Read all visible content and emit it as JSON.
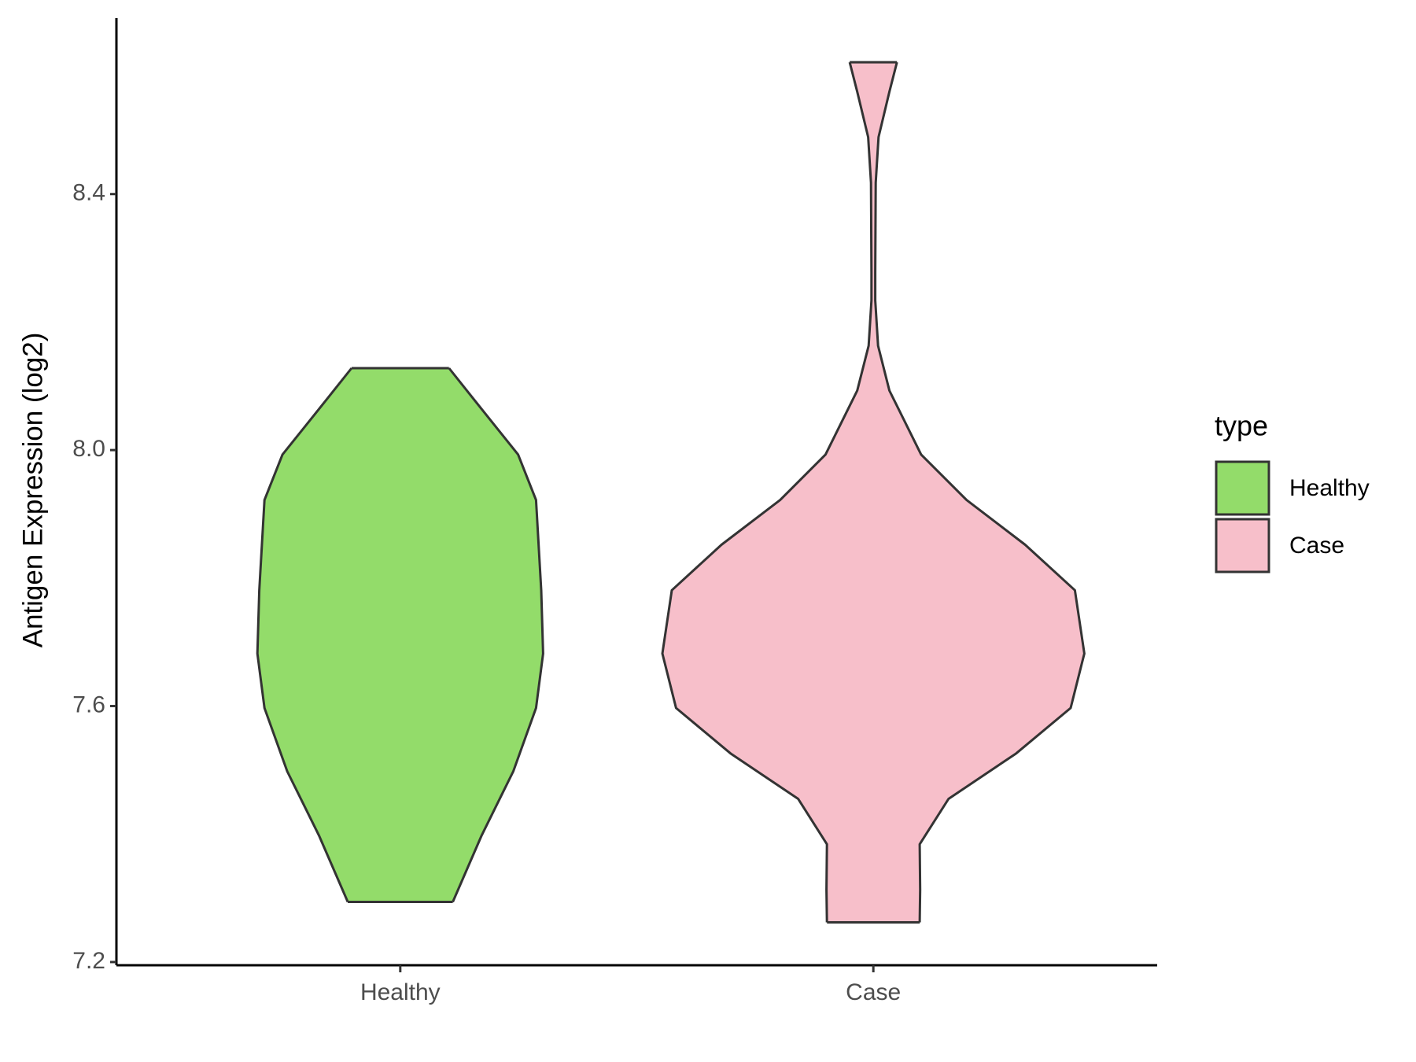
{
  "chart_data": {
    "type": "violin",
    "y_label": "Antigen Expression (log2)",
    "legend_title": "type",
    "legend_position": "right",
    "categories": [
      "Healthy",
      "Case"
    ],
    "ylim": [
      7.195,
      8.675
    ],
    "yticks": [
      7.2,
      7.6,
      {
        "value": 8,
        "label": "8.0"
      },
      8.4
    ],
    "series": [
      {
        "name": "Healthy",
        "color": "#93dc6a",
        "y": [
          8.128,
          8.064,
          7.993,
          7.922,
          7.781,
          7.682,
          7.597,
          7.498,
          7.398,
          7.294
        ],
        "width": [
          0.103,
          0.172,
          0.249,
          0.287,
          0.298,
          0.302,
          0.287,
          0.239,
          0.172,
          0.111
        ]
      },
      {
        "name": "Case",
        "color": "#f7bfca",
        "y": [
          8.606,
          8.56,
          8.489,
          8.418,
          8.277,
          8.234,
          8.163,
          8.093,
          7.993,
          7.922,
          7.852,
          7.781,
          7.682,
          7.597,
          7.526,
          7.455,
          7.384,
          7.313,
          7.262
        ],
        "width": [
          0.05,
          0.034,
          0.011,
          0.005,
          0.004,
          0.004,
          0.01,
          0.034,
          0.101,
          0.197,
          0.321,
          0.426,
          0.446,
          0.417,
          0.302,
          0.159,
          0.098,
          0.099,
          0.098
        ]
      }
    ]
  }
}
